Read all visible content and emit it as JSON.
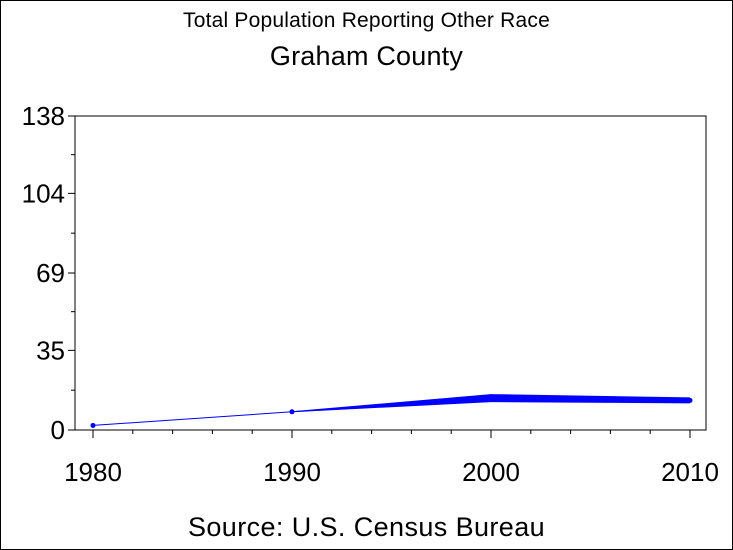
{
  "chart_data": {
    "type": "line",
    "title": "Total Population Reporting Other Race",
    "subtitle": "Graham County",
    "source": "Source: U.S. Census Bureau",
    "xlabel": "",
    "ylabel": "",
    "x_ticks": [
      "1980",
      "1990",
      "2000",
      "2010"
    ],
    "xlim": [
      1980,
      2010
    ],
    "y_ticks": [
      "0",
      "35",
      "69",
      "104",
      "138"
    ],
    "ylim": [
      0,
      138
    ],
    "grid": false,
    "line_color": "#0000ff",
    "series": [
      {
        "points": [
          {
            "x": 1980,
            "y": 2
          },
          {
            "x": 1990,
            "y": 8
          },
          {
            "x": 2000,
            "y": 14
          },
          {
            "x": 2010,
            "y": 13
          }
        ]
      }
    ]
  }
}
